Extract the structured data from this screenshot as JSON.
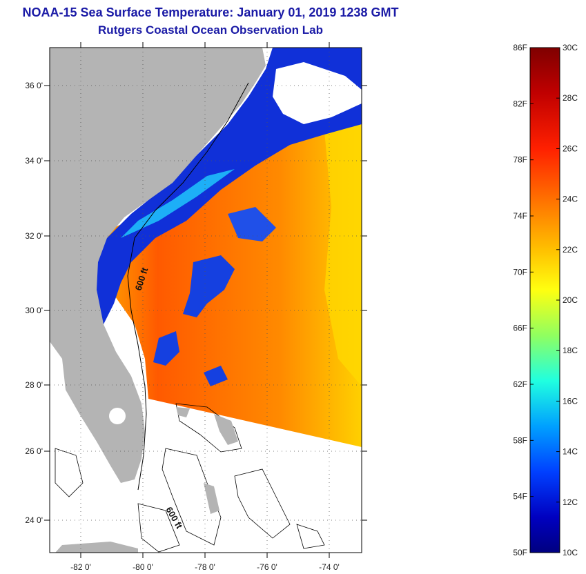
{
  "title": "NOAA-15 Sea Surface Temperature:  January 01, 2019 1238 GMT",
  "subtitle": "Rutgers Coastal Ocean Observation Lab",
  "map": {
    "lat_range": [
      23,
      37
    ],
    "lon_range": [
      -83,
      -73
    ],
    "lat_ticks": [
      "36 0'",
      "34 0'",
      "32 0'",
      "30 0'",
      "28 0'",
      "26 0'",
      "24 0'"
    ],
    "lon_ticks": [
      "-82 0'",
      "-80 0'",
      "-78 0'",
      "-76 0'",
      "-74 0'"
    ],
    "isobath_labels": [
      "600 ft",
      "600 ft"
    ],
    "colors": {
      "land": "#b4b4b4",
      "no_data": "#ffffff",
      "frame": "#000000"
    }
  },
  "colorbar": {
    "fahrenheit_labels": [
      "86F",
      "82F",
      "78F",
      "74F",
      "70F",
      "66F",
      "62F",
      "58F",
      "54F",
      "50F"
    ],
    "celsius_labels": [
      "30C",
      "28C",
      "26C",
      "24C",
      "22C",
      "20C",
      "18C",
      "16C",
      "14C",
      "12C",
      "10C"
    ],
    "range_c": [
      10,
      30
    ],
    "colors": [
      "#7f0000",
      "#c00000",
      "#ff2000",
      "#ff7000",
      "#ffc000",
      "#ffff10",
      "#90ff60",
      "#20ffe0",
      "#00a0ff",
      "#0040ff",
      "#0000c0",
      "#000080"
    ]
  }
}
